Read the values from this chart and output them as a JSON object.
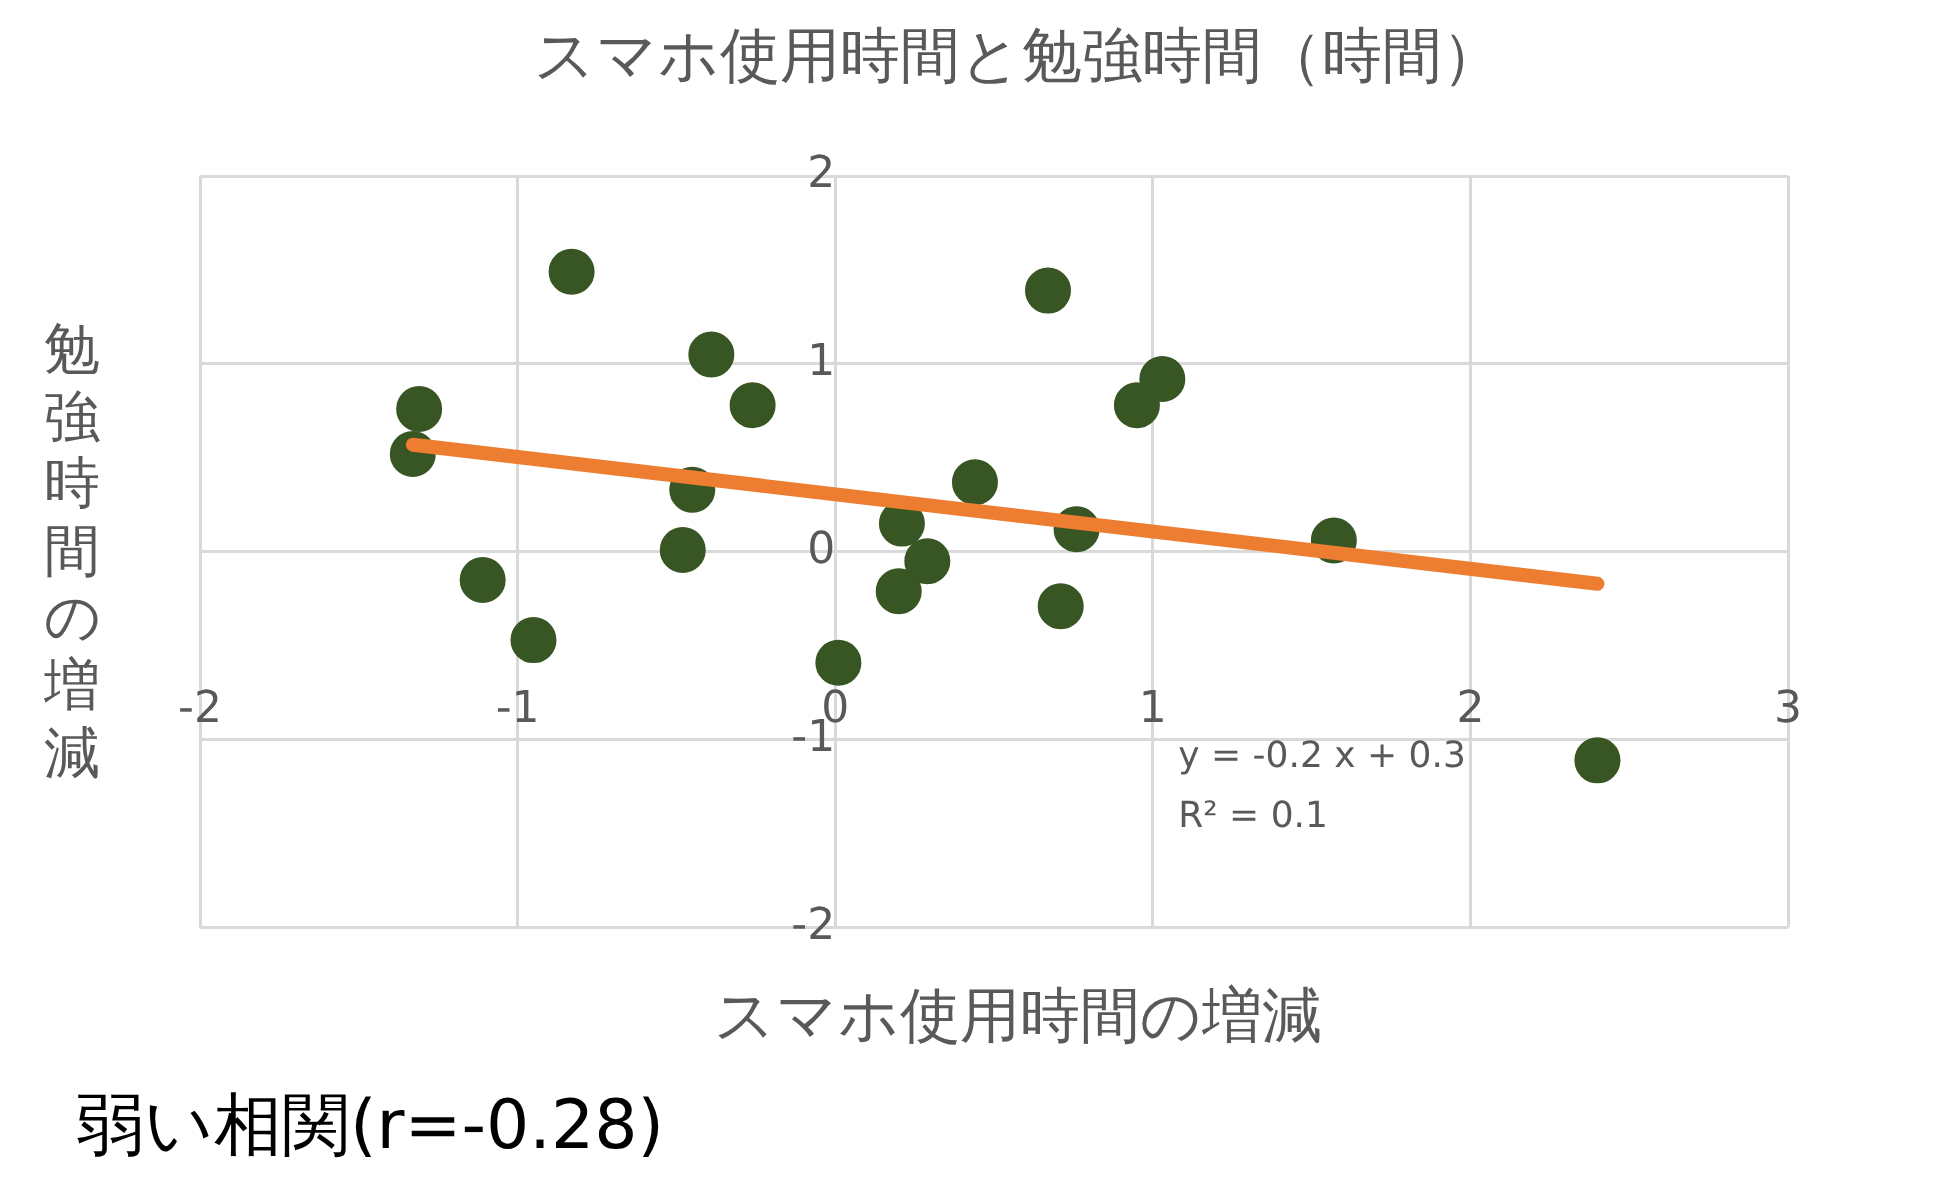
{
  "chart_data": {
    "type": "scatter",
    "title": "スマホ使用時間と勉強時間（時間）",
    "xlabel": "スマホ使用時間の増減",
    "ylabel": "勉強時間の増減",
    "series": [
      {
        "color": "#375623",
        "marker": "circle",
        "x": [
          -0.83,
          -1.31,
          -1.33,
          -1.11,
          -0.95,
          -0.39,
          -0.26,
          -0.45,
          -0.48,
          0.01,
          0.21,
          0.2,
          0.29,
          0.44,
          0.67,
          0.71,
          0.76,
          0.95,
          1.03,
          1.57,
          2.4
        ],
        "values": [
          1.49,
          0.76,
          0.52,
          -0.15,
          -0.47,
          1.05,
          0.78,
          0.33,
          0.01,
          -0.59,
          0.15,
          -0.21,
          -0.05,
          0.37,
          1.39,
          -0.29,
          0.12,
          0.78,
          0.92,
          0.06,
          -1.11
        ]
      },
      {
        "type": "line",
        "color": "#ed7d31",
        "x": [
          -1.33,
          2.4
        ],
        "values": [
          0.57,
          -0.17
        ]
      }
    ],
    "xlim": [
      -2,
      3
    ],
    "xticks": [
      -2,
      -1,
      0,
      1,
      2,
      3
    ],
    "ylim": [
      -2,
      2
    ],
    "yticks": [
      -2,
      -1,
      0,
      1,
      2
    ],
    "grid": true,
    "legend": false,
    "annotations": [
      "y = -0.2 x + 0.3",
      "R² = 0.1",
      "弱い相関(r=-0.28)"
    ]
  }
}
